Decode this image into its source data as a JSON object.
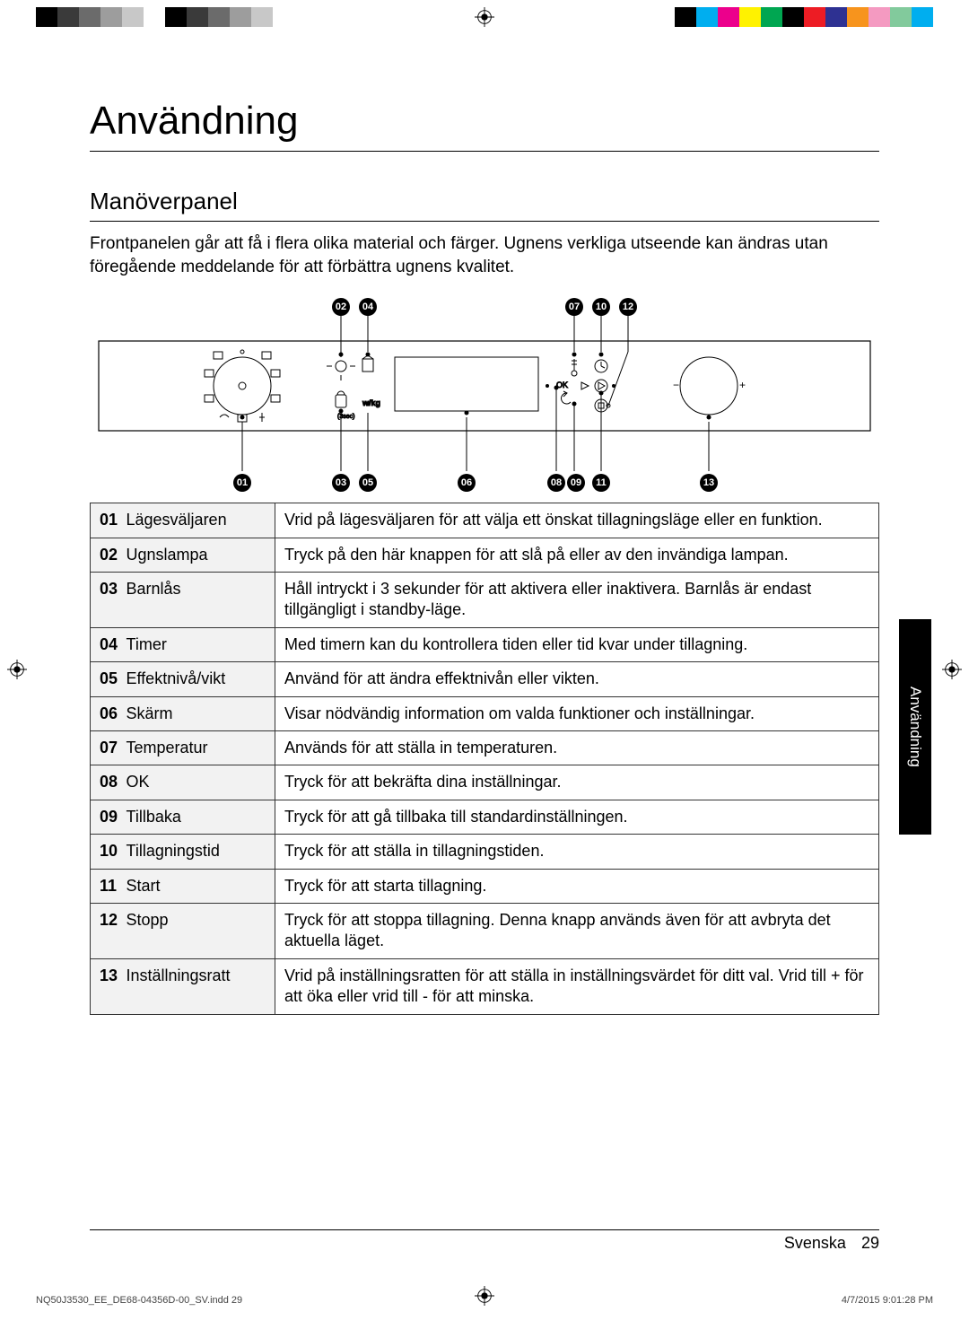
{
  "colorbar_left": [
    "#000000",
    "#3a3a3a",
    "#6b6b6b",
    "#9d9d9d",
    "#c8c8c8",
    "#ffffff",
    "#000000",
    "#3a3a3a",
    "#6b6b6b",
    "#9d9d9d",
    "#c8c8c8",
    "#ffffff"
  ],
  "colorbar_right": [
    "#000000",
    "#00aeef",
    "#ec008c",
    "#fff200",
    "#00a651",
    "#000000",
    "#ed1c24",
    "#2e3192",
    "#f7941d",
    "#f49ac1",
    "#82ca9c",
    "#00aeef"
  ],
  "title": "Användning",
  "section": "Manöverpanel",
  "intro": "Frontpanelen går att få i flera olika material och färger. Ugnens verkliga utseende kan ändras utan föregående meddelande för att förbättra ugnens kvalitet.",
  "figure": {
    "top_labels": [
      "02",
      "04",
      "07",
      "10",
      "12"
    ],
    "bottom_labels": [
      "01",
      "03",
      "05",
      "06",
      "08",
      "09",
      "11",
      "13"
    ],
    "ok_label": "OK",
    "minus": "−",
    "plus": "+"
  },
  "rows": [
    {
      "n": "01",
      "label": "Lägesväljaren",
      "desc": "Vrid på lägesväljaren för att välja ett önskat tillagningsläge eller en funktion."
    },
    {
      "n": "02",
      "label": "Ugnslampa",
      "desc": "Tryck på den här knappen för att slå på eller av den invändiga lampan."
    },
    {
      "n": "03",
      "label": "Barnlås",
      "desc": "Håll intryckt i 3 sekunder för att aktivera eller inaktivera. Barnlås är endast tillgängligt i standby-läge."
    },
    {
      "n": "04",
      "label": "Timer",
      "desc": "Med timern kan du kontrollera tiden eller tid kvar under tillagning."
    },
    {
      "n": "05",
      "label": "Effektnivå/vikt",
      "desc": "Använd för att ändra effektnivån eller vikten."
    },
    {
      "n": "06",
      "label": "Skärm",
      "desc": "Visar nödvändig information om valda funktioner och inställningar."
    },
    {
      "n": "07",
      "label": "Temperatur",
      "desc": "Används för att ställa in temperaturen."
    },
    {
      "n": "08",
      "label": "OK",
      "desc": "Tryck för att bekräfta dina inställningar."
    },
    {
      "n": "09",
      "label": "Tillbaka",
      "desc": "Tryck för att gå tillbaka till standardinställningen."
    },
    {
      "n": "10",
      "label": "Tillagningstid",
      "desc": "Tryck för att ställa in tillagningstiden."
    },
    {
      "n": "11",
      "label": "Start",
      "desc": "Tryck för att starta tillagning."
    },
    {
      "n": "12",
      "label": "Stopp",
      "desc": "Tryck för att stoppa tillagning. Denna knapp används även för att avbryta det aktuella läget."
    },
    {
      "n": "13",
      "label": "Inställningsratt",
      "desc": "Vrid på inställningsratten för att ställa in inställningsvärdet för ditt val. Vrid till + för att öka eller vrid till - för att minska."
    }
  ],
  "side_tab": "Användning",
  "footer_lang": "Svenska",
  "footer_page": "29",
  "print_file": "NQ50J3530_EE_DE68-04356D-00_SV.indd   29",
  "print_time": "4/7/2015   9:01:28 PM"
}
